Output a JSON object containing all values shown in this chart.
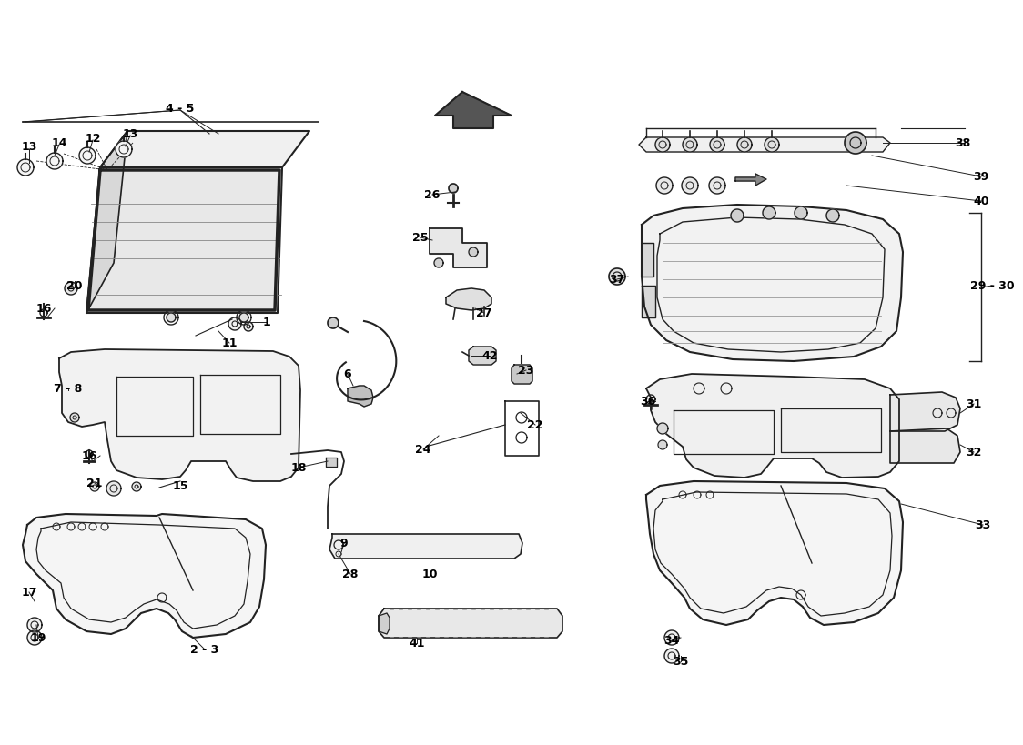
{
  "bg_color": "#ffffff",
  "line_color": "#222222",
  "parts_labels": [
    [
      "4 - 5",
      188,
      110
    ],
    [
      "13",
      22,
      152
    ],
    [
      "14",
      55,
      148
    ],
    [
      "12",
      92,
      143
    ],
    [
      "13",
      133,
      138
    ],
    [
      "20",
      72,
      305
    ],
    [
      "16",
      38,
      330
    ],
    [
      "1",
      283,
      345
    ],
    [
      "11",
      242,
      368
    ],
    [
      "7 - 8",
      65,
      418
    ],
    [
      "16",
      88,
      492
    ],
    [
      "21",
      94,
      522
    ],
    [
      "15",
      188,
      525
    ],
    [
      "18",
      318,
      505
    ],
    [
      "17",
      22,
      642
    ],
    [
      "19",
      32,
      692
    ],
    [
      "2 - 3",
      215,
      705
    ],
    [
      "26",
      465,
      205
    ],
    [
      "25",
      452,
      252
    ],
    [
      "27",
      522,
      335
    ],
    [
      "6",
      372,
      402
    ],
    [
      "42",
      528,
      382
    ],
    [
      "23",
      568,
      398
    ],
    [
      "22",
      578,
      458
    ],
    [
      "24",
      455,
      485
    ],
    [
      "9",
      368,
      588
    ],
    [
      "28",
      375,
      622
    ],
    [
      "10",
      462,
      622
    ],
    [
      "41",
      448,
      698
    ],
    [
      "38",
      1048,
      148
    ],
    [
      "39",
      1068,
      185
    ],
    [
      "40",
      1068,
      212
    ],
    [
      "29 - 30",
      1080,
      305
    ],
    [
      "37",
      668,
      298
    ],
    [
      "36",
      702,
      432
    ],
    [
      "31",
      1060,
      435
    ],
    [
      "32",
      1060,
      488
    ],
    [
      "33",
      1070,
      568
    ],
    [
      "34",
      728,
      695
    ],
    [
      "35",
      738,
      718
    ]
  ]
}
